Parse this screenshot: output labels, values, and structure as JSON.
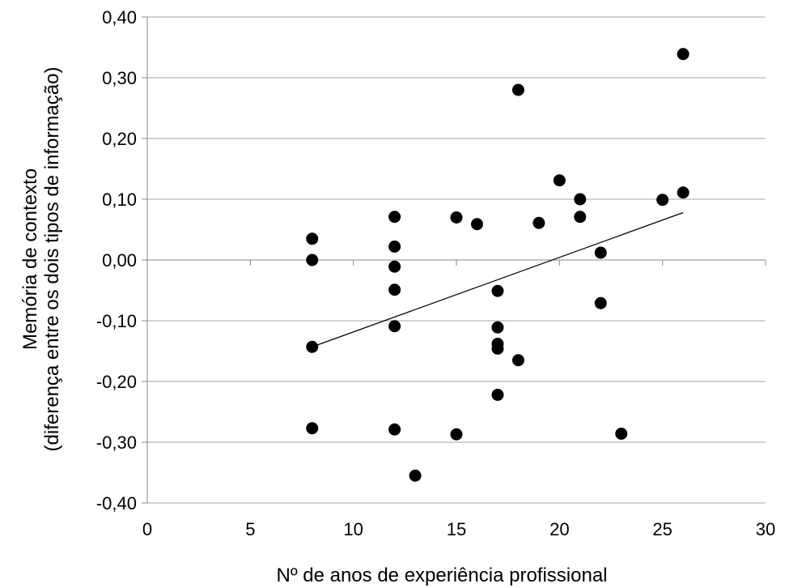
{
  "chart_data": {
    "type": "scatter",
    "title": "",
    "xlabel": "Nº de anos de experiência profissional",
    "ylabel_line1": "Memória de contexto",
    "ylabel_line2": "(diferença entre os dois tipos de informação)",
    "xlim": [
      0,
      30
    ],
    "ylim": [
      -0.4,
      0.4
    ],
    "grid": "horizontal",
    "legend": "none",
    "x_ticks": [
      0,
      5,
      10,
      15,
      20,
      25,
      30
    ],
    "x_tick_labels": [
      "0",
      "5",
      "10",
      "15",
      "20",
      "25",
      "30"
    ],
    "y_ticks": [
      0.4,
      0.3,
      0.2,
      0.1,
      0.0,
      -0.1,
      -0.2,
      -0.3,
      -0.4
    ],
    "y_tick_labels": [
      "0,40",
      "0,30",
      "0,20",
      "0,10",
      "0,00",
      "-0,10",
      "-0,20",
      "-0,30",
      "-0,40"
    ],
    "points": [
      {
        "x": 8,
        "y": 0.035
      },
      {
        "x": 8,
        "y": 0.0
      },
      {
        "x": 8,
        "y": -0.143
      },
      {
        "x": 8,
        "y": -0.277
      },
      {
        "x": 12,
        "y": 0.071
      },
      {
        "x": 12,
        "y": 0.022
      },
      {
        "x": 12,
        "y": -0.011
      },
      {
        "x": 12,
        "y": -0.049
      },
      {
        "x": 12,
        "y": -0.109
      },
      {
        "x": 12,
        "y": -0.279
      },
      {
        "x": 13,
        "y": -0.355
      },
      {
        "x": 15,
        "y": 0.07
      },
      {
        "x": 15,
        "y": -0.287
      },
      {
        "x": 16,
        "y": 0.059
      },
      {
        "x": 17,
        "y": -0.051
      },
      {
        "x": 17,
        "y": -0.111
      },
      {
        "x": 17,
        "y": -0.138
      },
      {
        "x": 17,
        "y": -0.146
      },
      {
        "x": 17,
        "y": -0.222
      },
      {
        "x": 18,
        "y": 0.28
      },
      {
        "x": 18,
        "y": -0.165
      },
      {
        "x": 19,
        "y": 0.061
      },
      {
        "x": 20,
        "y": 0.131
      },
      {
        "x": 21,
        "y": 0.1
      },
      {
        "x": 21,
        "y": 0.071
      },
      {
        "x": 22,
        "y": 0.012
      },
      {
        "x": 22,
        "y": -0.071
      },
      {
        "x": 23,
        "y": -0.286
      },
      {
        "x": 25,
        "y": 0.099
      },
      {
        "x": 26,
        "y": 0.339
      },
      {
        "x": 26,
        "y": 0.111
      }
    ],
    "trendline": {
      "x": [
        8,
        26
      ],
      "y": [
        -0.143,
        0.078
      ]
    },
    "colors": {
      "points": "#000000",
      "trendline": "#000000",
      "grid": "#a6a6a6",
      "axis": "#888888"
    }
  }
}
